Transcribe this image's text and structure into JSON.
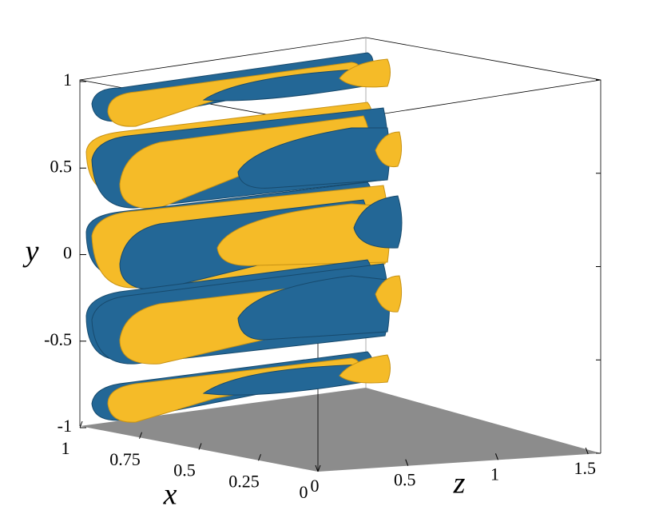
{
  "chart_data": {
    "type": "isosurface-3d",
    "xlabel": "x",
    "ylabel": "y",
    "zlabel": "z",
    "xlim": [
      1,
      0
    ],
    "xticks": [
      1,
      0.75,
      0.5,
      0.25,
      0
    ],
    "ylim": [
      -1,
      1
    ],
    "yticks": [
      1,
      0.5,
      0,
      -0.5,
      -1
    ],
    "zlim": [
      0,
      1.57
    ],
    "zticks": [
      0,
      0.5,
      1,
      1.5
    ]
  }
}
